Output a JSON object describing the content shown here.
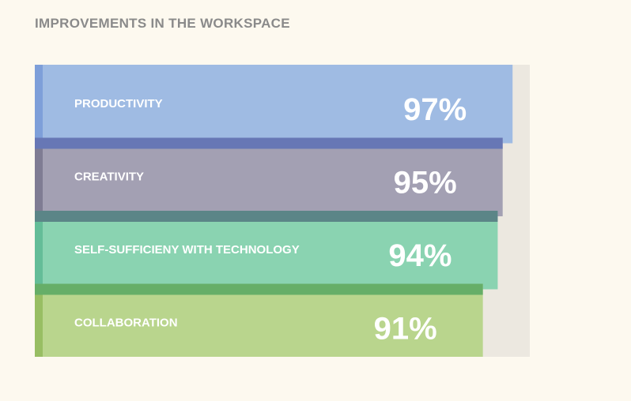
{
  "page": {
    "title": "IMPROVEMENTS IN THE WORKSPACE"
  },
  "chart_data": {
    "type": "bar",
    "orientation": "horizontal",
    "title": "IMPROVEMENTS IN THE WORKSPACE",
    "categories": [
      "PRODUCTIVITY",
      "CREATIVITY",
      "SELF-SUFFICIENY WITH TECHNOLOGY",
      "COLLABORATION"
    ],
    "values": [
      97,
      95,
      94,
      91
    ],
    "value_labels": [
      "97%",
      "95%",
      "94%",
      "91%"
    ],
    "xlim": [
      0,
      100
    ],
    "colors": {
      "fill": [
        "#9fbbe3",
        "#a3a0b3",
        "#8ad3b1",
        "#b9d58d"
      ],
      "edge": [
        "#7e9fd9",
        "#7f7c93",
        "#64bd98",
        "#98be63"
      ],
      "seam": [
        "#6777b5",
        "#5b8587",
        "#66ae68"
      ],
      "track": "#ece8e0",
      "track_seam": "#dedad2"
    }
  }
}
